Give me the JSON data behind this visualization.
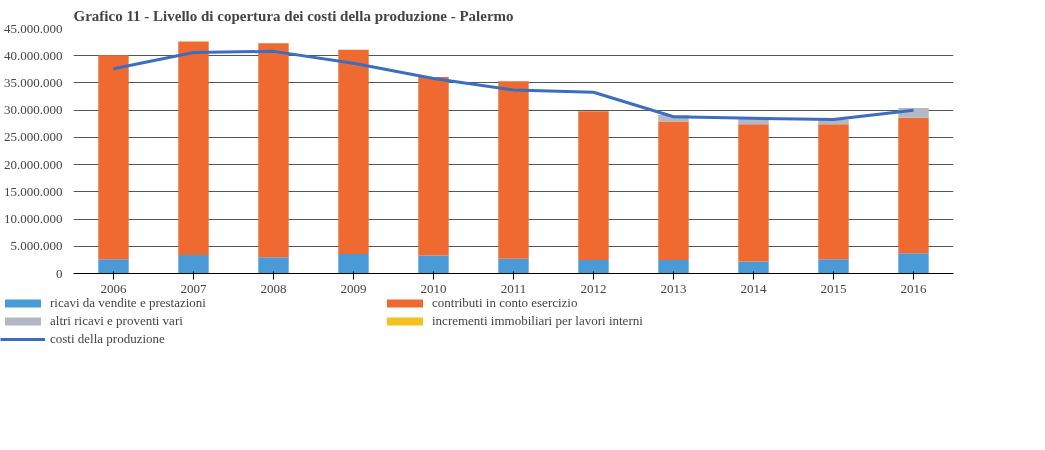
{
  "chart_data": {
    "type": "bar",
    "stacked": true,
    "title": "Grafico 11 - Livello di copertura dei costi della produzione - Palermo",
    "categories": [
      "2006",
      "2007",
      "2008",
      "2009",
      "2010",
      "2011",
      "2012",
      "2013",
      "2014",
      "2015",
      "2016"
    ],
    "series": [
      {
        "name": "ricavi da vendite e prestazioni",
        "color": "#4a9ad8",
        "values": [
          2600000,
          3400000,
          3000000,
          3600000,
          3300000,
          2700000,
          2500000,
          2500000,
          2200000,
          2600000,
          3700000
        ]
      },
      {
        "name": "contributi in conto esercizio",
        "color": "#ee6a30",
        "values": [
          37500000,
          39200000,
          39300000,
          37500000,
          32800000,
          32600000,
          27300000,
          25400000,
          25200000,
          24800000,
          24900000
        ]
      },
      {
        "name": "altri ricavi e proventi vari",
        "color": "#b4b8c4",
        "values": [
          0,
          0,
          0,
          0,
          0,
          0,
          0,
          1200000,
          1000000,
          900000,
          1800000
        ]
      },
      {
        "name": "incrementi immobiliari per lavori interni",
        "color": "#f5c020",
        "values": [
          0,
          0,
          0,
          0,
          0,
          0,
          0,
          0,
          0,
          0,
          0
        ]
      },
      {
        "name": "costi della produzione",
        "type": "line",
        "color": "#3a6ec0",
        "values": [
          37600000,
          40600000,
          40800000,
          38600000,
          35800000,
          33700000,
          33300000,
          28800000,
          28500000,
          28300000,
          30000000
        ]
      }
    ],
    "ylim": [
      0,
      45000000
    ],
    "yticks": [
      {
        "value": 0,
        "label": "0"
      },
      {
        "value": 5000000,
        "label": "5.000.000"
      },
      {
        "value": 10000000,
        "label": "10.000.000"
      },
      {
        "value": 15000000,
        "label": "15.000.000"
      },
      {
        "value": 20000000,
        "label": "20.000.000"
      },
      {
        "value": 25000000,
        "label": "25.000.000"
      },
      {
        "value": 30000000,
        "label": "30.000.000"
      },
      {
        "value": 35000000,
        "label": "35.000.000"
      },
      {
        "value": 40000000,
        "label": "40.000.000"
      },
      {
        "value": 45000000,
        "label": "45.000.000"
      }
    ],
    "grid": "y",
    "legend": "bottom"
  }
}
